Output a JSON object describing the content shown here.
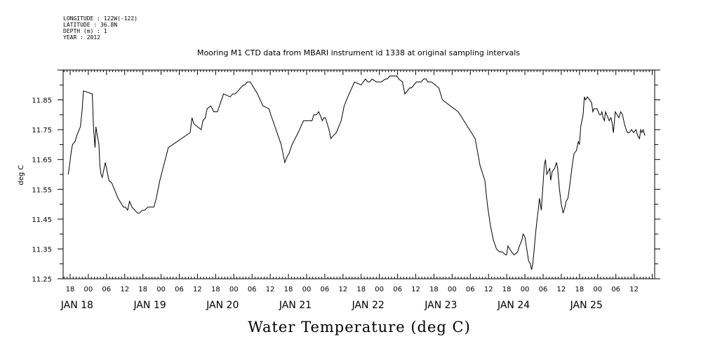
{
  "header": {
    "lines": [
      "LONGITUDE : 122W(-122)",
      "LATITUDE : 36.8N",
      "DEPTH (m) : 1",
      "YEAR : 2012"
    ]
  },
  "chart_data": {
    "type": "line",
    "title": "Mooring M1 CTD data from MBARI instrument id 1338 at original sampling intervals",
    "xlabel": "Water Temperature (deg C)",
    "ylabel": "deg C",
    "x_unit": "hours since JAN 18 00:00 2012",
    "ylim": [
      11.25,
      11.95
    ],
    "y_ticks": [
      11.25,
      11.35,
      11.45,
      11.55,
      11.65,
      11.75,
      11.85
    ],
    "x_ticks": [
      {
        "x": -6,
        "label": "18"
      },
      {
        "x": 0,
        "label": "00"
      },
      {
        "x": 6,
        "label": "06"
      },
      {
        "x": 12,
        "label": "12"
      },
      {
        "x": 18,
        "label": "18"
      },
      {
        "x": 24,
        "label": "00"
      },
      {
        "x": 30,
        "label": "06"
      },
      {
        "x": 36,
        "label": "12"
      },
      {
        "x": 42,
        "label": "18"
      },
      {
        "x": 48,
        "label": "00"
      },
      {
        "x": 54,
        "label": "06"
      },
      {
        "x": 60,
        "label": "12"
      },
      {
        "x": 66,
        "label": "18"
      },
      {
        "x": 72,
        "label": "00"
      },
      {
        "x": 78,
        "label": "06"
      },
      {
        "x": 84,
        "label": "12"
      },
      {
        "x": 90,
        "label": "18"
      },
      {
        "x": 96,
        "label": "00"
      },
      {
        "x": 102,
        "label": "06"
      },
      {
        "x": 108,
        "label": "12"
      },
      {
        "x": 114,
        "label": "18"
      },
      {
        "x": 120,
        "label": "00"
      },
      {
        "x": 126,
        "label": "06"
      },
      {
        "x": 132,
        "label": "12"
      },
      {
        "x": 138,
        "label": "18"
      },
      {
        "x": 144,
        "label": "00"
      },
      {
        "x": 150,
        "label": "06"
      },
      {
        "x": 156,
        "label": "12"
      },
      {
        "x": 162,
        "label": "18"
      },
      {
        "x": 168,
        "label": "00"
      },
      {
        "x": 174,
        "label": "06"
      },
      {
        "x": 180,
        "label": "12"
      }
    ],
    "date_labels": [
      {
        "x": 0,
        "label": "JAN 18"
      },
      {
        "x": 24,
        "label": "JAN 19"
      },
      {
        "x": 48,
        "label": "JAN 20"
      },
      {
        "x": 72,
        "label": "JAN 21"
      },
      {
        "x": 96,
        "label": "JAN 22"
      },
      {
        "x": 120,
        "label": "JAN 23"
      },
      {
        "x": 144,
        "label": "JAN 24"
      },
      {
        "x": 168,
        "label": "JAN 25"
      }
    ],
    "series": [
      {
        "x": [
          -6.6,
          -6.2,
          -5.6,
          -5.2,
          -4.4,
          -3.8,
          -2.6,
          -2.0,
          -1.6,
          1.3,
          1.5,
          1.7,
          2.2,
          2.5,
          2.8,
          3.5,
          3.8,
          4.2,
          4.6,
          5.6,
          6.8,
          7.8,
          8.6,
          9.4,
          9.8,
          10.4,
          11.0,
          11.6,
          12.2,
          13.0,
          13.6,
          14.4,
          15.4,
          16.2,
          16.8,
          17.8,
          18.6,
          19.6,
          21.6,
          22.4,
          23.6,
          26.4,
          33.6,
          34.2,
          34.8,
          36.0,
          37.2,
          37.8,
          38.6,
          39.2,
          40.4,
          41.4,
          42.6,
          44.6,
          46.8,
          47.6,
          48.4,
          49.4,
          50.2,
          51.2,
          51.6,
          52.4,
          52.8,
          53.4,
          55.8,
          57.6,
          59.6,
          60.2,
          63.6,
          64.6,
          64.8,
          65.2,
          65.6,
          66.2,
          67.2,
          69.2,
          71.0,
          71.6,
          72.4,
          73.2,
          73.8,
          74.4,
          75.2,
          76.0,
          76.4,
          76.8,
          77.2,
          77.6,
          78.2,
          79.4,
          80.0,
          80.8,
          81.8,
          83.4,
          84.4,
          85.6,
          87.8,
          90.0,
          91.4,
          92.2,
          92.8,
          93.6,
          95.0,
          96.6,
          98.0,
          98.6,
          99.4,
          100.0,
          100.8,
          101.2,
          101.8,
          102.4,
          103.6,
          104.4,
          105.2,
          106.0,
          106.6,
          108.2,
          109.4,
          109.8,
          110.6,
          111.4,
          112.0,
          113.2,
          115.6,
          116.8,
          122.0,
          127.6,
          129.2,
          130.8,
          131.6,
          132.6,
          133.6,
          134.6,
          135.6,
          136.6,
          137.6,
          138.0,
          138.4,
          139.0,
          139.6,
          140.4,
          141.6,
          142.2,
          143.0,
          143.4,
          144.0,
          144.6,
          145.2,
          145.8,
          146.2,
          146.6,
          147.0,
          147.4,
          148.0,
          148.4,
          148.8,
          149.4,
          150.0,
          150.4,
          150.8,
          151.2,
          152.2,
          152.5,
          153.0,
          153.8,
          154.4,
          154.8,
          155.4,
          156.0,
          156.6,
          157.2,
          157.6,
          158.2,
          158.6,
          159.0,
          159.6,
          160.2,
          161.0,
          161.6,
          162.0,
          162.4,
          163.2,
          163.6,
          164.0,
          164.6,
          165.4,
          166.0,
          166.4,
          166.8,
          167.4,
          167.8,
          168.2,
          168.6,
          169.0,
          169.4,
          169.8,
          170.2,
          170.6,
          171.0,
          171.4,
          171.8,
          172.4,
          172.8,
          173.2,
          173.8,
          174.4,
          175.0,
          175.6,
          176.2,
          176.8,
          177.4,
          177.8,
          178.4,
          179.2,
          179.8,
          180.6,
          181.2,
          181.8,
          182.2,
          182.6,
          183.0,
          183.6
        ],
        "values": [
          11.6,
          11.63,
          11.68,
          11.7,
          11.71,
          11.73,
          11.76,
          11.82,
          11.88,
          11.87,
          11.82,
          11.76,
          11.69,
          11.76,
          11.74,
          11.7,
          11.63,
          11.6,
          11.59,
          11.64,
          11.58,
          11.57,
          11.55,
          11.53,
          11.52,
          11.51,
          11.5,
          11.49,
          11.49,
          11.48,
          11.51,
          11.49,
          11.48,
          11.47,
          11.47,
          11.48,
          11.48,
          11.49,
          11.49,
          11.52,
          11.58,
          11.69,
          11.74,
          11.79,
          11.77,
          11.76,
          11.75,
          11.78,
          11.79,
          11.82,
          11.83,
          11.81,
          11.81,
          11.87,
          11.86,
          11.87,
          11.87,
          11.88,
          11.89,
          11.9,
          11.9,
          11.91,
          11.91,
          11.91,
          11.87,
          11.83,
          11.82,
          11.8,
          11.7,
          11.65,
          11.64,
          11.65,
          11.66,
          11.67,
          11.7,
          11.74,
          11.78,
          11.78,
          11.78,
          11.78,
          11.78,
          11.8,
          11.8,
          11.81,
          11.8,
          11.79,
          11.78,
          11.79,
          11.79,
          11.75,
          11.72,
          11.73,
          11.74,
          11.78,
          11.83,
          11.86,
          11.91,
          11.9,
          11.92,
          11.91,
          11.91,
          11.92,
          11.91,
          11.91,
          11.92,
          11.92,
          11.93,
          11.93,
          11.93,
          11.93,
          11.93,
          11.92,
          11.91,
          11.87,
          11.88,
          11.89,
          11.89,
          11.91,
          11.91,
          11.91,
          11.92,
          11.92,
          11.91,
          11.91,
          11.89,
          11.85,
          11.81,
          11.72,
          11.63,
          11.58,
          11.5,
          11.43,
          11.38,
          11.35,
          11.34,
          11.34,
          11.33,
          11.33,
          11.36,
          11.35,
          11.34,
          11.33,
          11.34,
          11.36,
          11.38,
          11.4,
          11.39,
          11.35,
          11.31,
          11.3,
          11.28,
          11.3,
          11.34,
          11.39,
          11.45,
          11.48,
          11.52,
          11.48,
          11.57,
          11.63,
          11.65,
          11.6,
          11.62,
          11.58,
          11.61,
          11.62,
          11.64,
          11.62,
          11.55,
          11.5,
          11.47,
          11.49,
          11.51,
          11.52,
          11.55,
          11.58,
          11.63,
          11.67,
          11.68,
          11.71,
          11.7,
          11.76,
          11.8,
          11.86,
          11.85,
          11.86,
          11.85,
          11.84,
          11.81,
          11.82,
          11.82,
          11.82,
          11.81,
          11.8,
          11.8,
          11.81,
          11.79,
          11.78,
          11.81,
          11.8,
          11.79,
          11.78,
          11.79,
          11.77,
          11.74,
          11.81,
          11.8,
          11.79,
          11.81,
          11.8,
          11.77,
          11.75,
          11.74,
          11.74,
          11.75,
          11.74,
          11.75,
          11.73,
          11.72,
          11.75,
          11.74,
          11.75,
          11.73
        ]
      }
    ]
  }
}
